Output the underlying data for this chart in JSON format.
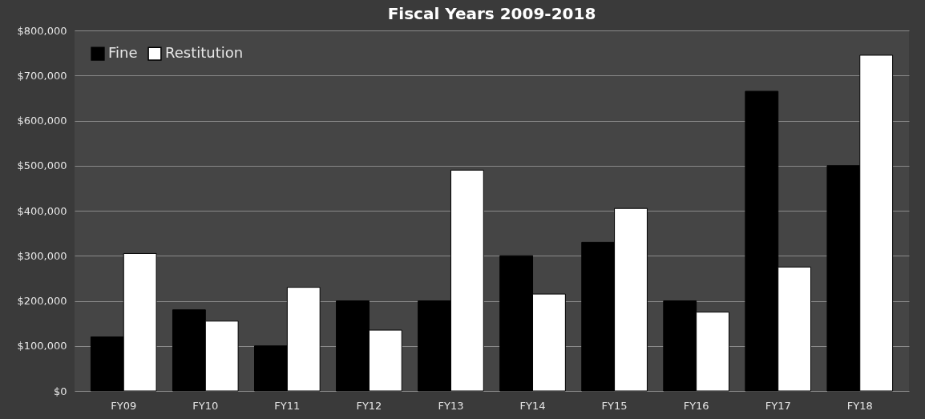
{
  "chart_data": {
    "type": "bar",
    "title": "Fiscal Years 2009-2018",
    "categories": [
      "FY09",
      "FY10",
      "FY11",
      "FY12",
      "FY13",
      "FY14",
      "FY15",
      "FY16",
      "FY17",
      "FY18"
    ],
    "series": [
      {
        "name": "Fine",
        "color": "#000000",
        "values": [
          120000,
          180000,
          100000,
          200000,
          200000,
          300000,
          330000,
          200000,
          665000,
          500000
        ]
      },
      {
        "name": "Restitution",
        "color": "#ffffff",
        "values": [
          305000,
          155000,
          230000,
          135000,
          490000,
          215000,
          405000,
          175000,
          275000,
          745000
        ]
      }
    ],
    "ylim": [
      0,
      800000
    ],
    "yticks": [
      {
        "value": 0,
        "label": "$0"
      },
      {
        "value": 100000,
        "label": "$100,000"
      },
      {
        "value": 200000,
        "label": "$200,000"
      },
      {
        "value": 300000,
        "label": "$300,000"
      },
      {
        "value": 400000,
        "label": "$400,000"
      },
      {
        "value": 500000,
        "label": "$500,000"
      },
      {
        "value": 600000,
        "label": "$600,000"
      },
      {
        "value": 700000,
        "label": "$700,000"
      },
      {
        "value": 800000,
        "label": "$800,000"
      }
    ],
    "grid": "y",
    "legend": "top left"
  }
}
